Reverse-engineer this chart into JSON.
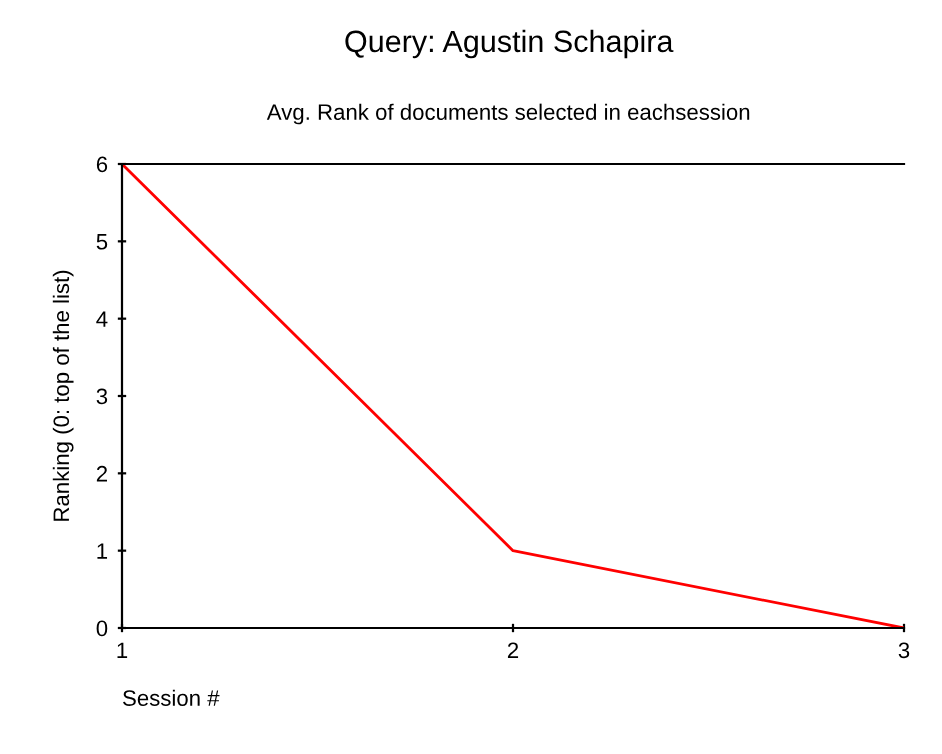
{
  "chart_data": {
    "type": "line",
    "title": "Query: Agustin Schapira",
    "subtitle": "Avg. Rank of documents selected in eachsession",
    "xlabel": "Session #",
    "ylabel": "Ranking (0: top of the list)",
    "x": [
      1,
      2,
      3
    ],
    "series": [
      {
        "color": "#ff0000",
        "values": [
          6,
          1,
          0
        ]
      }
    ],
    "xlim": [
      1,
      3
    ],
    "xticks": [
      1,
      2,
      3
    ],
    "ylim": [
      0,
      6
    ],
    "yticks": [
      0,
      1,
      2,
      3,
      4,
      5,
      6
    ],
    "grid": false,
    "legend": false,
    "marker": "none",
    "line_style": "solid"
  }
}
